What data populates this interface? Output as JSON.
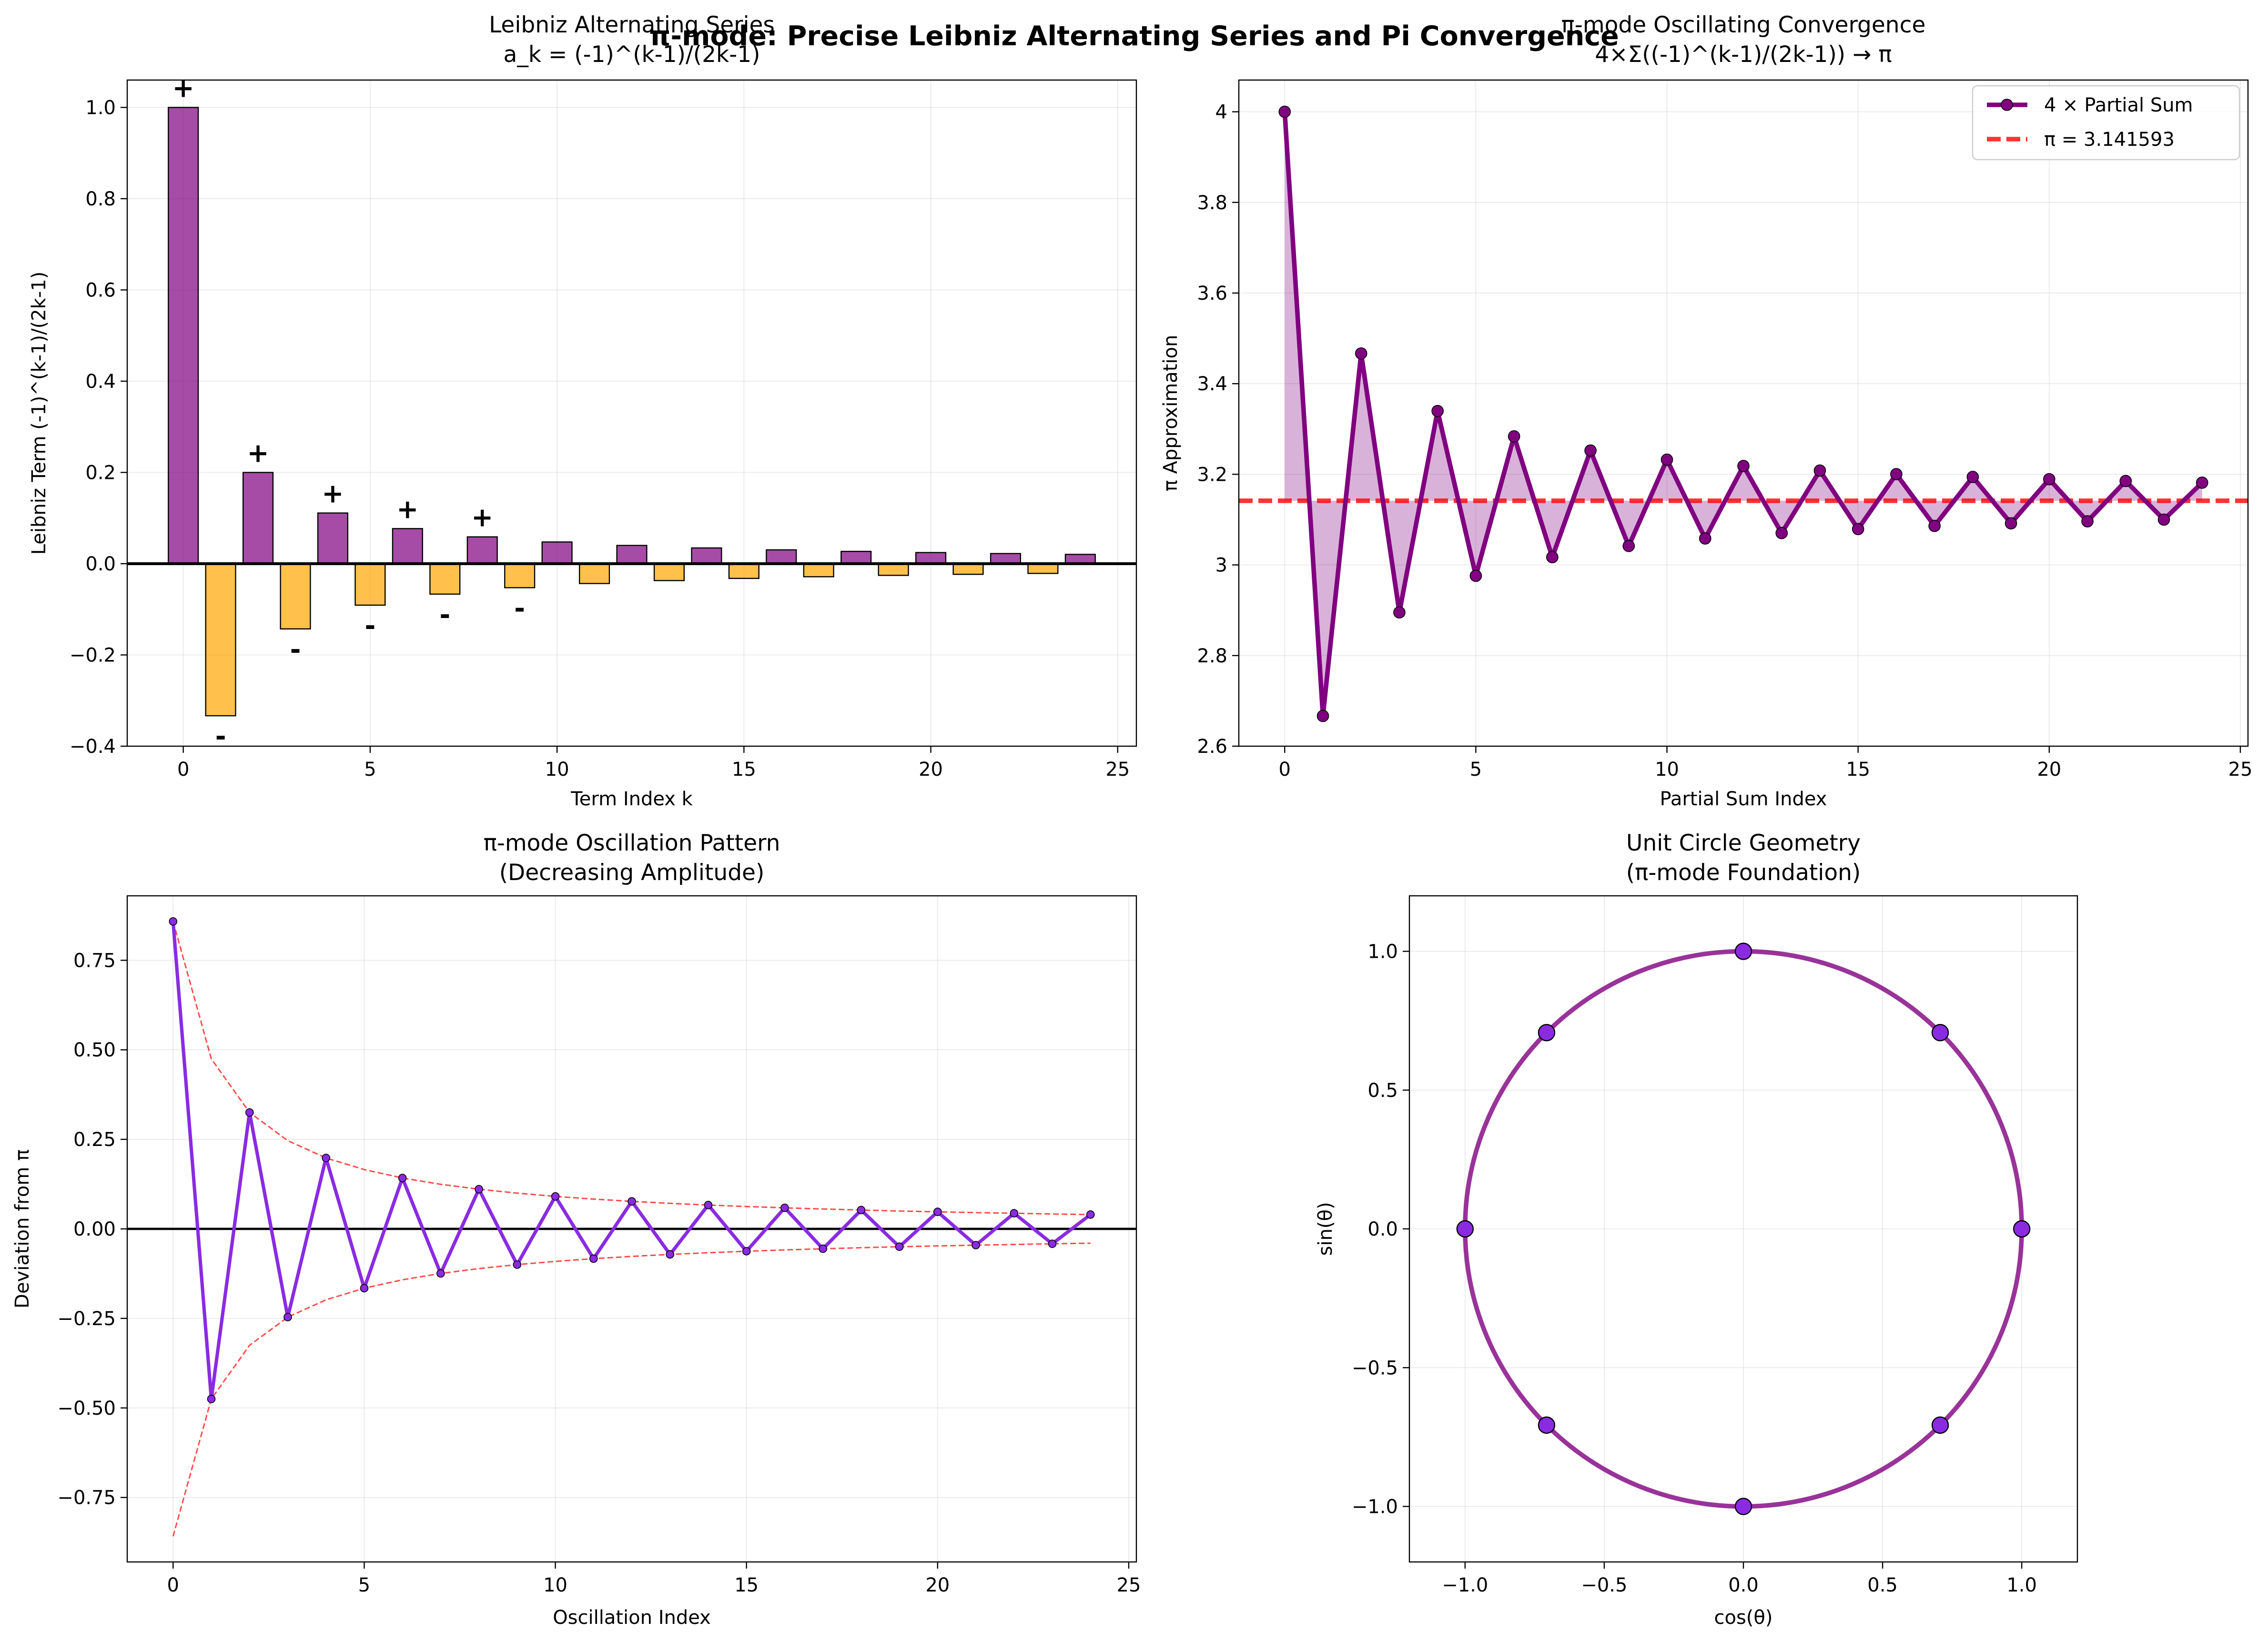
{
  "figure": {
    "title": "π-mode: Precise Leibniz Alternating Series and Pi Convergence"
  },
  "colors": {
    "positive_bar": "#800080",
    "negative_bar": "#ffa500",
    "partial_sum": "#800080",
    "pi_line": "#ff0000",
    "oscillation": "#8a2be2",
    "envelope": "#ff0000",
    "circle": "#800080",
    "circle_points": "#8a2be2"
  },
  "chart_data": [
    {
      "id": "leibniz-terms",
      "type": "bar",
      "title": "Leibniz Alternating Series",
      "subtitle": "a_k = (-1)^(k-1)/(2k-1)",
      "xlabel": "Term Index k",
      "ylabel": "Leibniz Term (-1)^(k-1)/(2k-1)",
      "xlim": [
        -1.5,
        25.5
      ],
      "ylim": [
        -0.4,
        1.06
      ],
      "xticks": [
        0,
        5,
        10,
        15,
        20,
        25
      ],
      "yticks": [
        -0.4,
        -0.2,
        0.0,
        0.2,
        0.4,
        0.6,
        0.8,
        1.0
      ],
      "ytick_labels": [
        "−0.4",
        "−0.2",
        "0.0",
        "0.2",
        "0.4",
        "0.6",
        "0.8",
        "1.0"
      ],
      "grid": true,
      "categories": [
        0,
        1,
        2,
        3,
        4,
        5,
        6,
        7,
        8,
        9,
        10,
        11,
        12,
        13,
        14,
        15,
        16,
        17,
        18,
        19,
        20,
        21,
        22,
        23,
        24
      ],
      "values": [
        1.0,
        -0.3333,
        0.2,
        -0.1429,
        0.1111,
        -0.0909,
        0.0769,
        -0.0667,
        0.0588,
        -0.0526,
        0.0476,
        -0.0435,
        0.04,
        -0.037,
        0.0345,
        -0.0323,
        0.0303,
        -0.0286,
        0.027,
        -0.0256,
        0.0244,
        -0.0233,
        0.0222,
        -0.0213,
        0.0204
      ],
      "sign_labels": [
        {
          "k": 0,
          "text": "+"
        },
        {
          "k": 1,
          "text": "-"
        },
        {
          "k": 2,
          "text": "+"
        },
        {
          "k": 3,
          "text": "-"
        },
        {
          "k": 4,
          "text": "+"
        },
        {
          "k": 5,
          "text": "-"
        },
        {
          "k": 6,
          "text": "+"
        },
        {
          "k": 7,
          "text": "-"
        },
        {
          "k": 8,
          "text": "+"
        },
        {
          "k": 9,
          "text": "-"
        }
      ]
    },
    {
      "id": "pi-convergence",
      "type": "line",
      "title": "π-mode Oscillating Convergence",
      "subtitle": "4×Σ((-1)^(k-1)/(2k-1)) → π",
      "xlabel": "Partial Sum Index",
      "ylabel": "π Approximation",
      "xlim": [
        -1.2,
        25.2
      ],
      "ylim": [
        2.6,
        4.07
      ],
      "xticks": [
        0,
        5,
        10,
        15,
        20,
        25
      ],
      "yticks": [
        2.6,
        2.8,
        3.0,
        3.2,
        3.4,
        3.6,
        3.8,
        4.0
      ],
      "grid": true,
      "legend_position": "top-right",
      "x": [
        0,
        1,
        2,
        3,
        4,
        5,
        6,
        7,
        8,
        9,
        10,
        11,
        12,
        13,
        14,
        15,
        16,
        17,
        18,
        19,
        20,
        21,
        22,
        23,
        24
      ],
      "series": [
        {
          "name": "4 × Partial Sum",
          "values": [
            4.0,
            2.6667,
            3.4667,
            2.8952,
            3.3397,
            2.976,
            3.2837,
            3.0171,
            3.2524,
            3.0418,
            3.2323,
            3.0584,
            3.2184,
            3.0703,
            3.2082,
            3.0792,
            3.2004,
            3.0861,
            3.1942,
            3.0918,
            3.1892,
            3.0962,
            3.1852,
            3.1,
            3.1815
          ]
        }
      ],
      "reference_line": {
        "name": "π = 3.141593",
        "value": 3.141593
      }
    },
    {
      "id": "oscillation-pattern",
      "type": "line",
      "title": "π-mode Oscillation Pattern",
      "subtitle": "(Decreasing Amplitude)",
      "xlabel": "Oscillation Index",
      "ylabel": "Deviation from π",
      "xlim": [
        -1.2,
        25.2
      ],
      "ylim": [
        -0.93,
        0.93
      ],
      "xticks": [
        0,
        5,
        10,
        15,
        20,
        25
      ],
      "yticks": [
        -0.75,
        -0.5,
        -0.25,
        0.0,
        0.25,
        0.5,
        0.75
      ],
      "ytick_labels": [
        "−0.75",
        "−0.50",
        "−0.25",
        "0.00",
        "0.25",
        "0.50",
        "0.75"
      ],
      "grid": true,
      "x": [
        0,
        1,
        2,
        3,
        4,
        5,
        6,
        7,
        8,
        9,
        10,
        11,
        12,
        13,
        14,
        15,
        16,
        17,
        18,
        19,
        20,
        21,
        22,
        23,
        24
      ],
      "series": [
        {
          "values": [
            0.8584,
            -0.4749,
            0.3251,
            -0.2464,
            0.1981,
            -0.1656,
            0.1421,
            -0.1245,
            0.1108,
            -0.0998,
            0.0907,
            -0.0832,
            0.0768,
            -0.0713,
            0.0666,
            -0.0624,
            0.0588,
            -0.0555,
            0.0526,
            -0.0498,
            0.0476,
            -0.0454,
            0.0436,
            -0.0416,
            0.04
          ]
        },
        {
          "values": [
            0.8584,
            0.4749,
            0.3251,
            0.2464,
            0.1981,
            0.1656,
            0.1421,
            0.1245,
            0.1108,
            0.0998,
            0.0907,
            0.0832,
            0.0768,
            0.0713,
            0.0666,
            0.0624,
            0.0588,
            0.0555,
            0.0526,
            0.0498,
            0.0476,
            0.0454,
            0.0436,
            0.0416,
            0.04
          ]
        },
        {
          "values": [
            -0.8584,
            -0.4749,
            -0.3251,
            -0.2464,
            -0.1981,
            -0.1656,
            -0.1421,
            -0.1245,
            -0.1108,
            -0.0998,
            -0.0907,
            -0.0832,
            -0.0768,
            -0.0713,
            -0.0666,
            -0.0624,
            -0.0588,
            -0.0555,
            -0.0526,
            -0.0498,
            -0.0476,
            -0.0454,
            -0.0436,
            -0.0416,
            -0.04
          ]
        }
      ]
    },
    {
      "id": "unit-circle",
      "type": "scatter",
      "title": "Unit Circle Geometry",
      "subtitle": "(π-mode Foundation)",
      "xlabel": "cos(θ)",
      "ylabel": "sin(θ)",
      "xlim": [
        -1.2,
        1.2
      ],
      "ylim": [
        -1.2,
        1.2
      ],
      "xticks": [
        -1.0,
        -0.5,
        0.0,
        0.5,
        1.0
      ],
      "xtick_labels": [
        "−1.0",
        "−0.5",
        "0.0",
        "0.5",
        "1.0"
      ],
      "yticks": [
        -1.0,
        -0.5,
        0.0,
        0.5,
        1.0
      ],
      "ytick_labels": [
        "−1.0",
        "−0.5",
        "0.0",
        "0.5",
        "1.0"
      ],
      "grid": true,
      "circle_radius": 1.0,
      "points": [
        {
          "x": 1.0,
          "y": 0.0
        },
        {
          "x": 0.7071,
          "y": 0.7071
        },
        {
          "x": 0.0,
          "y": 1.0
        },
        {
          "x": -0.7071,
          "y": 0.7071
        },
        {
          "x": -1.0,
          "y": 0.0
        },
        {
          "x": -0.7071,
          "y": -0.7071
        },
        {
          "x": 0.0,
          "y": -1.0
        },
        {
          "x": 0.7071,
          "y": -0.7071
        }
      ]
    }
  ]
}
